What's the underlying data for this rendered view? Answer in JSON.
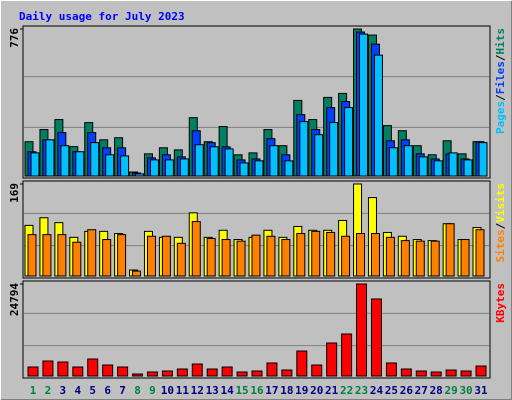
{
  "chart_data": [
    {
      "type": "bar",
      "title": "Daily usage for July 2023",
      "categories": [
        "1",
        "2",
        "3",
        "4",
        "5",
        "6",
        "7",
        "8",
        "9",
        "10",
        "11",
        "12",
        "13",
        "14",
        "15",
        "16",
        "17",
        "18",
        "19",
        "20",
        "21",
        "22",
        "23",
        "24",
        "25",
        "26",
        "27",
        "28",
        "29",
        "30",
        "31"
      ],
      "category_colors": [
        "#008040",
        "#008040",
        "#000080",
        "#000080",
        "#000080",
        "#000080",
        "#000080",
        "#008040",
        "#008040",
        "#000080",
        "#000080",
        "#000080",
        "#000080",
        "#000080",
        "#008040",
        "#008040",
        "#000080",
        "#000080",
        "#000080",
        "#000080",
        "#000080",
        "#008040",
        "#008040",
        "#000080",
        "#000080",
        "#000080",
        "#000080",
        "#000080",
        "#008040",
        "#008040",
        "#000080"
      ],
      "legend_separator": "/",
      "ylim": [
        0,
        776
      ],
      "yticks": [
        776
      ],
      "series": [
        {
          "name": "Pages",
          "color": "#00c0ff",
          "values": [
            122,
            191,
            160,
            128,
            176,
            112,
            106,
            11,
            85,
            85,
            90,
            165,
            154,
            143,
            69,
            80,
            160,
            80,
            287,
            218,
            282,
            361,
            749,
            638,
            149,
            160,
            101,
            80,
            122,
            85,
            176
          ]
        },
        {
          "name": "Files",
          "color": "#0040ff",
          "values": [
            128,
            191,
            229,
            128,
            229,
            149,
            149,
            16,
            96,
            112,
            101,
            239,
            176,
            154,
            85,
            90,
            197,
            112,
            324,
            245,
            361,
            393,
            760,
            696,
            186,
            191,
            117,
            90,
            117,
            90,
            181
          ]
        },
        {
          "name": "Hits",
          "color": "#008060",
          "values": [
            181,
            245,
            298,
            155,
            282,
            191,
            202,
            21,
            117,
            149,
            138,
            308,
            181,
            261,
            112,
            122,
            245,
            160,
            399,
            298,
            415,
            436,
            776,
            744,
            266,
            239,
            160,
            112,
            186,
            117,
            181
          ]
        }
      ]
    },
    {
      "type": "bar",
      "legend_separator": "/",
      "ylim": [
        0,
        169
      ],
      "yticks": [
        169
      ],
      "series": [
        {
          "name": "Sites",
          "color": "#ff8000",
          "values": [
            76,
            76,
            76,
            62,
            85,
            67,
            76,
            9,
            73,
            73,
            60,
            100,
            69,
            67,
            64,
            75,
            73,
            67,
            78,
            82,
            80,
            73,
            78,
            78,
            71,
            65,
            64,
            64,
            96,
            67,
            85
          ]
        },
        {
          "name": "Visits",
          "color": "#ffff00",
          "values": [
            93,
            107,
            98,
            71,
            82,
            82,
            78,
            11,
            82,
            71,
            71,
            116,
            71,
            84,
            67,
            71,
            84,
            71,
            91,
            84,
            84,
            102,
            169,
            144,
            80,
            73,
            67,
            65,
            96,
            67,
            89
          ]
        }
      ]
    },
    {
      "type": "bar",
      "ylim": [
        0,
        24794
      ],
      "yticks": [
        24794
      ],
      "series": [
        {
          "name": "KBytes",
          "color": "#ff0000",
          "values": [
            2425,
            4042,
            3773,
            2425,
            4581,
            2964,
            2425,
            539,
            1078,
            1347,
            1886,
            3234,
            1886,
            2425,
            1078,
            1347,
            3503,
            1617,
            6737,
            2964,
            8893,
            11318,
            24794,
            20750,
            3503,
            1886,
            1347,
            1078,
            1617,
            1347,
            2695
          ]
        }
      ]
    }
  ]
}
